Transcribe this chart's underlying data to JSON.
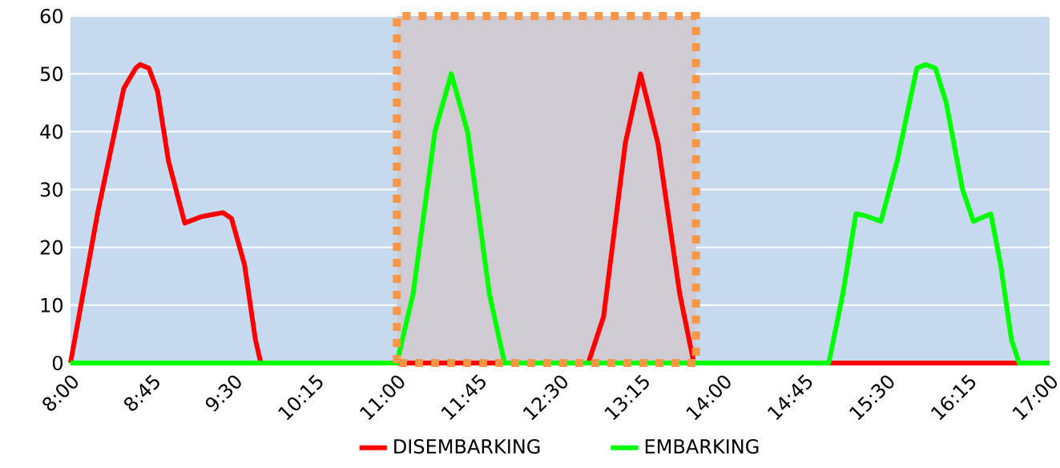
{
  "chart_data": {
    "type": "line",
    "xlim": [
      8,
      17
    ],
    "xticks": [
      {
        "value": 8,
        "label": "8:00"
      },
      {
        "value": 8.75,
        "label": "8:45"
      },
      {
        "value": 9.5,
        "label": "9:30"
      },
      {
        "value": 10.25,
        "label": "10:15"
      },
      {
        "value": 11,
        "label": "11:00"
      },
      {
        "value": 11.75,
        "label": "11:45"
      },
      {
        "value": 12.5,
        "label": "12:30"
      },
      {
        "value": 13.25,
        "label": "13:15"
      },
      {
        "value": 14,
        "label": "14:00"
      },
      {
        "value": 14.75,
        "label": "14:45"
      },
      {
        "value": 15.5,
        "label": "15:30"
      },
      {
        "value": 16.25,
        "label": "16:15"
      },
      {
        "value": 17,
        "label": "17:00"
      }
    ],
    "ylim": [
      0,
      60
    ],
    "yticks": [
      0,
      10,
      20,
      30,
      40,
      50,
      60
    ],
    "grid": "y",
    "legend": "bottom",
    "line_style": "solid",
    "marker": "none",
    "bands": [
      {
        "axis": "x",
        "from": 11,
        "to": 13.75,
        "color": "#d0cbd3"
      }
    ],
    "series": [
      {
        "name": "DISEMBARKING",
        "color": "#ff0000",
        "x": [
          8,
          8.25,
          8.49,
          8.6,
          8.64,
          8.72,
          8.8,
          8.9,
          9.05,
          9.2,
          9.4,
          9.48,
          9.6,
          9.7,
          9.75,
          12.76,
          12.9,
          13.1,
          13.24,
          13.4,
          13.6,
          13.73,
          17
        ],
        "values": [
          0,
          26,
          47.5,
          51,
          51.6,
          51,
          47,
          35,
          24.2,
          25.3,
          26,
          25,
          17,
          4,
          0,
          0,
          8,
          38,
          50,
          38,
          12,
          0,
          0
        ]
      },
      {
        "name": "EMBARKING",
        "color": "#00ff00",
        "x": [
          8,
          11.0,
          11.15,
          11.35,
          11.5,
          11.65,
          11.85,
          11.99,
          14.97,
          15.1,
          15.22,
          15.3,
          15.45,
          15.6,
          15.78,
          15.86,
          15.95,
          16.05,
          16.2,
          16.3,
          16.46,
          16.55,
          16.65,
          16.72,
          17
        ],
        "values": [
          0,
          0,
          12,
          40,
          50,
          40,
          12,
          0,
          0,
          12,
          25.8,
          25.5,
          24.5,
          35,
          51,
          51.6,
          51,
          45,
          30,
          24.5,
          25.8,
          17,
          4,
          0,
          0
        ]
      }
    ]
  }
}
